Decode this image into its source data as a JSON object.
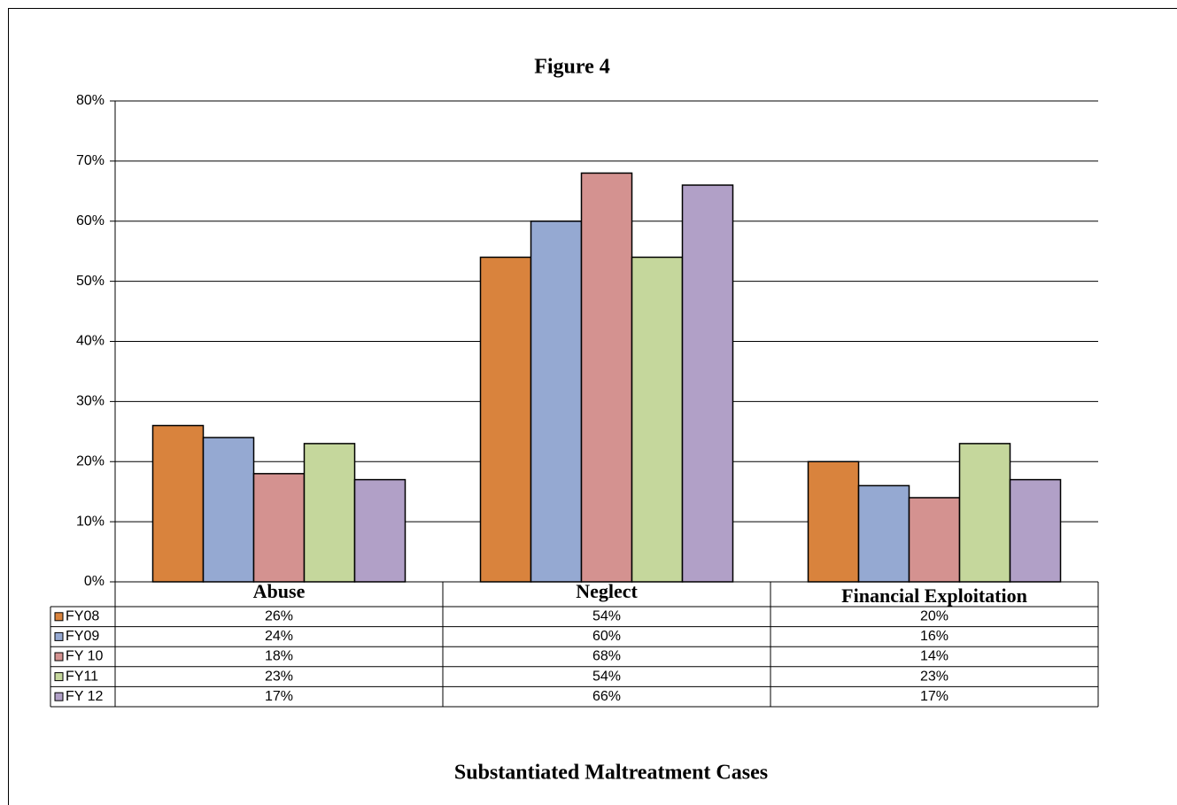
{
  "chart_data": {
    "type": "bar",
    "title": "Figure 4",
    "subtitle": "Substantiated Maltreatment Cases",
    "categories": [
      "Abuse",
      "Neglect",
      "Financial Exploitation"
    ],
    "series": [
      {
        "name": "FY08",
        "color": "#d9833d",
        "values": [
          26,
          54,
          20
        ],
        "value_labels": [
          "26%",
          "54%",
          "20%"
        ]
      },
      {
        "name": "FY09",
        "color": "#95a9d2",
        "values": [
          24,
          60,
          16
        ],
        "value_labels": [
          "24%",
          "60%",
          "16%"
        ]
      },
      {
        "name": "FY 10",
        "color": "#d49290",
        "values": [
          18,
          68,
          14
        ],
        "value_labels": [
          "18%",
          "68%",
          "14%"
        ]
      },
      {
        "name": "FY11",
        "color": "#c5d79c",
        "values": [
          23,
          54,
          23
        ],
        "value_labels": [
          "23%",
          "54%",
          "23%"
        ]
      },
      {
        "name": "FY 12",
        "color": "#b1a0c7",
        "values": [
          17,
          66,
          17
        ],
        "value_labels": [
          "17%",
          "66%",
          "17%"
        ]
      }
    ],
    "ylim": [
      0,
      80
    ],
    "yticks": [
      {
        "value": 0,
        "label": "0%"
      },
      {
        "value": 10,
        "label": "10%"
      },
      {
        "value": 20,
        "label": "20%"
      },
      {
        "value": 30,
        "label": "30%"
      },
      {
        "value": 40,
        "label": "40%"
      },
      {
        "value": 50,
        "label": "50%"
      },
      {
        "value": 60,
        "label": "60%"
      },
      {
        "value": 70,
        "label": "70%"
      },
      {
        "value": 80,
        "label": "80%"
      }
    ],
    "grid": true
  }
}
